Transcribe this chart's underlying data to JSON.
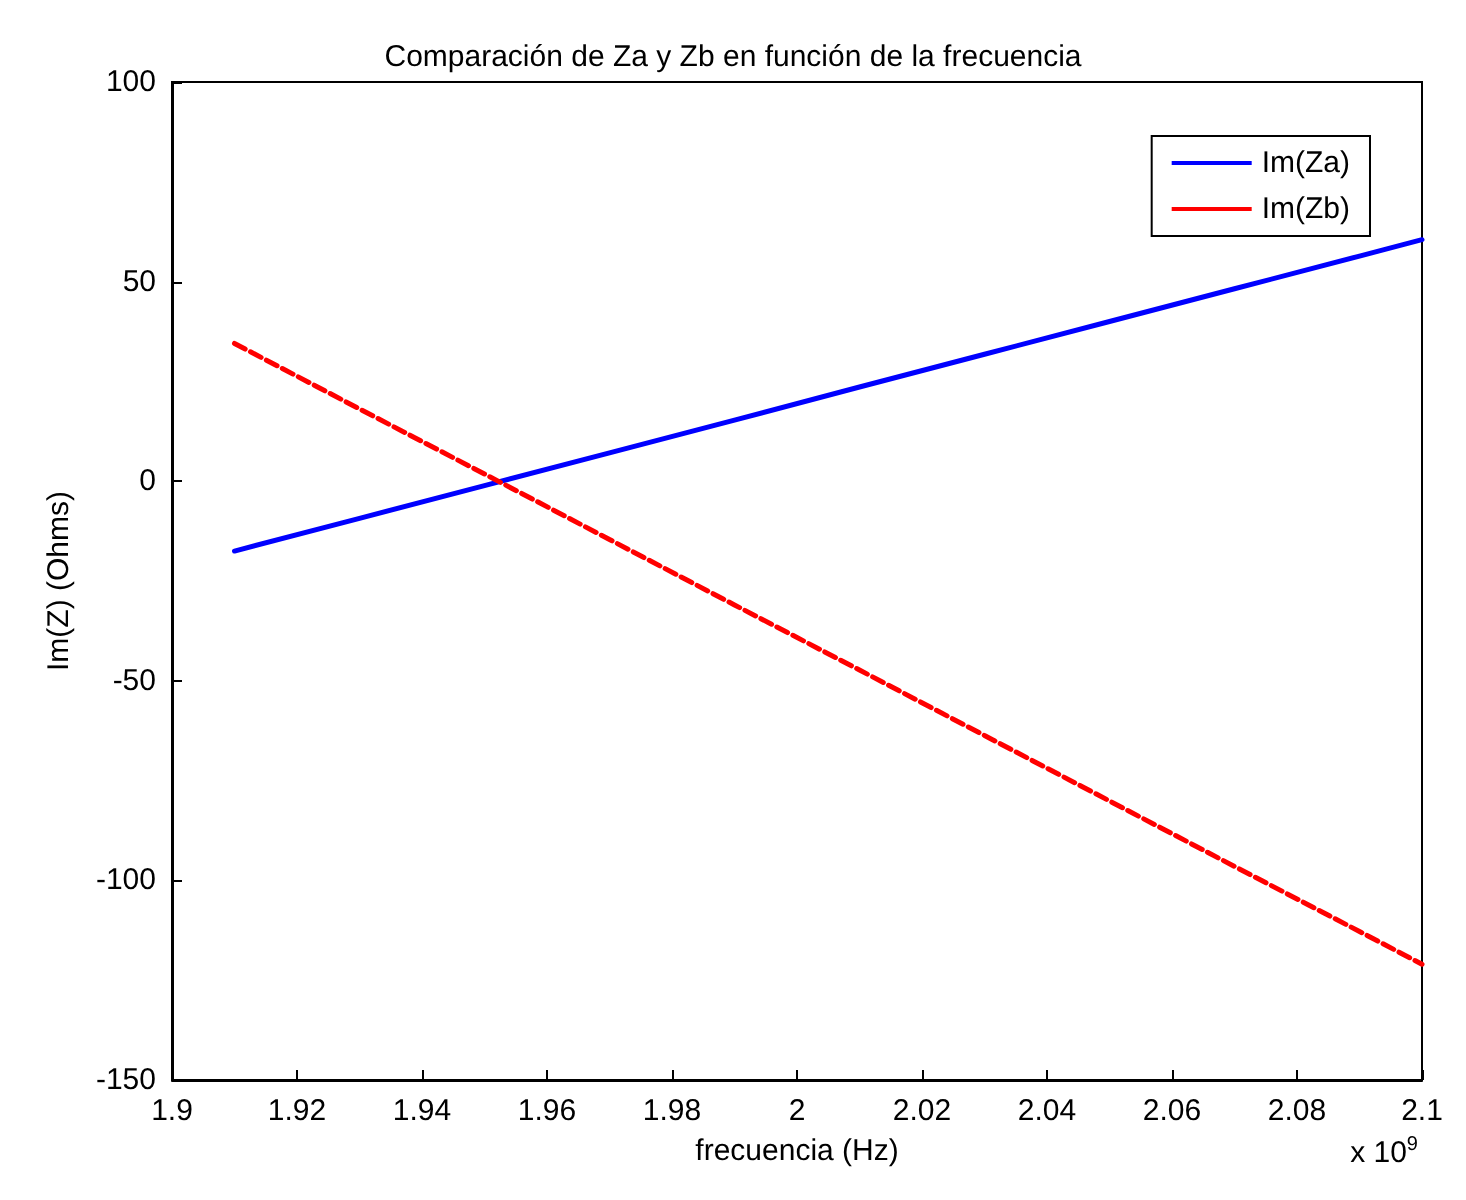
{
  "chart_data": {
    "type": "line",
    "title": "Comparación de Za y Zb en función de la frecuencia",
    "xlabel": "frecuencia (Hz)",
    "ylabel": "Im(Z) (Ohms)",
    "annotations": [
      "x 10$^{9}$"
    ],
    "x": [
      1.91,
      1.93,
      1.95,
      1.97,
      1.99,
      2.01,
      2.03,
      2.05,
      2.07,
      2.09,
      2.1
    ],
    "series": [
      {
        "name": "Im(Za)",
        "color": "#0000ff",
        "line_style": "solid",
        "values": [
          -17.5,
          -9.3,
          -1.1,
          7.1,
          15.3,
          23.6,
          31.8,
          40,
          48.2,
          56.4,
          60.5
        ]
      },
      {
        "name": "Im(Zb)",
        "color": "#ff0000",
        "line_style": "dashed",
        "values": [
          34.5,
          18.1,
          1.8,
          -14.6,
          -31,
          -47.3,
          -63.7,
          -80.1,
          -96.5,
          -112.8,
          -121
        ]
      }
    ],
    "xlim": [
      1.9,
      2.1
    ],
    "xticks": [
      1.9,
      1.92,
      1.94,
      1.96,
      1.98,
      2,
      2.02,
      2.04,
      2.06,
      2.08,
      2.1
    ],
    "ylim": [
      -150,
      100
    ],
    "yticks": [
      -150,
      -100,
      -50,
      0,
      50,
      100
    ],
    "grid": false,
    "legend": "top right",
    "marker": "none"
  }
}
